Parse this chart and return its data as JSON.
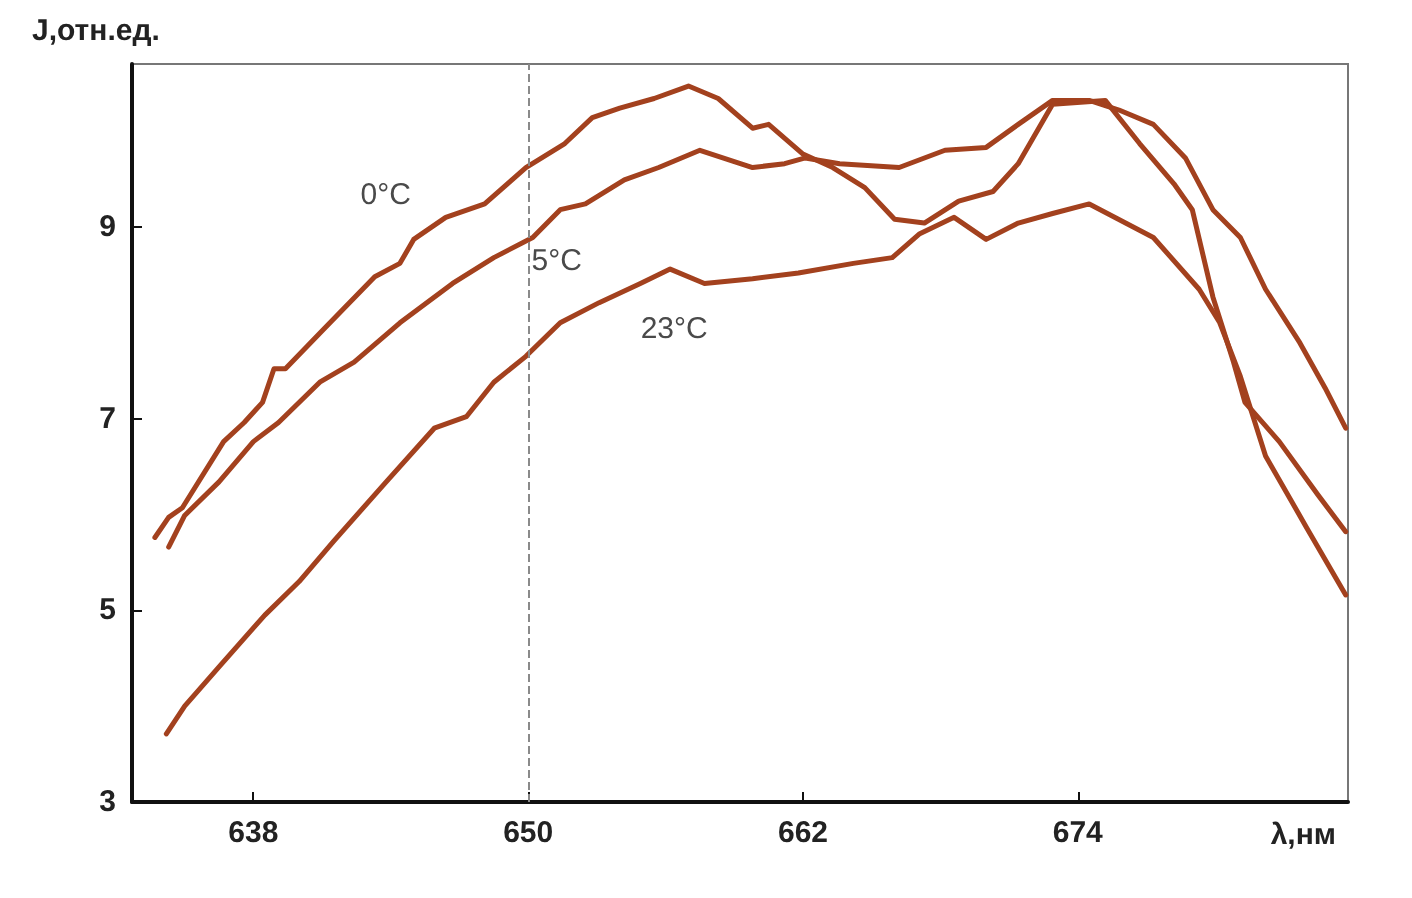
{
  "chart_data": {
    "type": "line",
    "xlabel": "λ,нм",
    "ylabel": "J,отн.ед.",
    "xlim": [
      632.7,
      685.8
    ],
    "ylim": [
      3,
      10.7
    ],
    "xticks": [
      638,
      650,
      662,
      674
    ],
    "yticks": [
      3,
      5,
      7,
      9
    ],
    "grid": false,
    "marker": "none",
    "line_style": "solid",
    "ref_lines": [
      {
        "axis": "x",
        "value": 650,
        "color": "#8a8a8a",
        "line_style": "dashed"
      }
    ],
    "series": [
      {
        "name": "0°C",
        "color": "#a3411e",
        "x": [
          633.7,
          634.3,
          634.9,
          636.7,
          637.6,
          638.4,
          638.9,
          639.4,
          641.1,
          643.3,
          644.4,
          645.0,
          646.4,
          648.1,
          649.9,
          651.6,
          652.8,
          654.0,
          655.5,
          657.0,
          658.3,
          659.8,
          660.5,
          662.0,
          663.3,
          664.7,
          666.0,
          667.3,
          668.8,
          670.3,
          671.4,
          672.9,
          675.2,
          676.7,
          678.2,
          679.0,
          679.9,
          680.8,
          681.3,
          682.8,
          684.5,
          685.7
        ],
        "values": [
          5.76,
          5.97,
          6.07,
          6.76,
          6.96,
          7.17,
          7.52,
          7.52,
          7.94,
          8.48,
          8.62,
          8.87,
          9.1,
          9.24,
          9.62,
          9.87,
          10.14,
          10.24,
          10.34,
          10.47,
          10.34,
          10.03,
          10.07,
          9.76,
          9.62,
          9.41,
          9.08,
          9.04,
          9.27,
          9.37,
          9.66,
          10.28,
          10.32,
          9.87,
          9.45,
          9.18,
          8.27,
          7.59,
          7.17,
          6.76,
          6.2,
          5.82
        ]
      },
      {
        "name": "5°C",
        "color": "#a3411e",
        "x": [
          634.3,
          635.0,
          636.5,
          638.0,
          639.1,
          640.9,
          642.4,
          644.4,
          646.7,
          648.5,
          650.2,
          651.4,
          652.5,
          654.2,
          655.7,
          657.5,
          659.8,
          661.2,
          662.1,
          663.6,
          666.2,
          668.2,
          670.0,
          671.4,
          672.9,
          674.5,
          675.8,
          677.3,
          678.7,
          679.9,
          681.1,
          682.2,
          683.7,
          684.8,
          685.7
        ],
        "values": [
          5.66,
          5.99,
          6.34,
          6.76,
          6.96,
          7.38,
          7.59,
          8.0,
          8.41,
          8.68,
          8.89,
          9.18,
          9.24,
          9.49,
          9.62,
          9.8,
          9.62,
          9.66,
          9.72,
          9.66,
          9.62,
          9.8,
          9.83,
          10.07,
          10.32,
          10.32,
          10.22,
          10.07,
          9.72,
          9.18,
          8.89,
          8.35,
          7.79,
          7.32,
          6.9
        ]
      },
      {
        "name": "23°C",
        "color": "#a3411e",
        "x": [
          634.2,
          635.0,
          636.5,
          638.5,
          640.0,
          641.5,
          643.8,
          645.9,
          647.3,
          648.5,
          649.9,
          651.4,
          653.1,
          654.9,
          656.2,
          657.7,
          659.8,
          661.8,
          664.2,
          665.9,
          667.1,
          668.6,
          670.0,
          671.4,
          672.9,
          674.5,
          677.3,
          679.3,
          680.2,
          681.1,
          682.2,
          684.0,
          685.7
        ],
        "values": [
          3.71,
          4.0,
          4.41,
          4.95,
          5.3,
          5.72,
          6.34,
          6.9,
          7.02,
          7.38,
          7.65,
          8.0,
          8.21,
          8.41,
          8.56,
          8.41,
          8.46,
          8.52,
          8.62,
          8.68,
          8.93,
          9.1,
          8.87,
          9.04,
          9.14,
          9.24,
          8.89,
          8.35,
          8.0,
          7.44,
          6.61,
          5.86,
          5.16
        ]
      }
    ]
  }
}
